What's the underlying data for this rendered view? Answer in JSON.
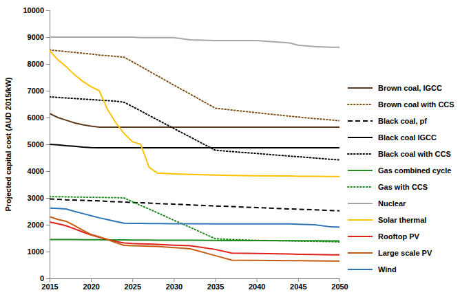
{
  "chart_data": {
    "type": "line",
    "y_label": "Projected capital cost (AUD 2015/kW)",
    "x": [
      2015,
      2016,
      2017,
      2018,
      2019,
      2020,
      2021,
      2022,
      2023,
      2024,
      2025,
      2026,
      2027,
      2028,
      2030,
      2032,
      2035,
      2037,
      2040,
      2044,
      2045,
      2047,
      2049,
      2050
    ],
    "xlim": [
      2015,
      2050
    ],
    "xticks": [
      2015,
      2020,
      2025,
      2030,
      2035,
      2040,
      2045,
      2050
    ],
    "ylim": [
      0,
      10000
    ],
    "yticks": [
      0,
      1000,
      2000,
      3000,
      4000,
      5000,
      6000,
      7000,
      8000,
      9000,
      10000
    ],
    "grid": false,
    "legend": "right",
    "series": [
      {
        "name": "Brown coal, IGCC",
        "color": "#5c3a1e",
        "line_style": "solid",
        "values": [
          6150,
          6000,
          5900,
          5800,
          5730,
          5680,
          5640,
          5640,
          5640,
          5640,
          5640,
          5640,
          5640,
          5640,
          5640,
          5640,
          5640,
          5640,
          5640,
          5640,
          5640,
          5640,
          5640,
          5640
        ]
      },
      {
        "name": "Brown coal with CCS",
        "color": "#7f5217",
        "line_style": "dotted",
        "values": [
          8520,
          8490,
          8460,
          8430,
          8400,
          8370,
          8330,
          8310,
          8280,
          8250,
          8080,
          7910,
          7730,
          7560,
          7210,
          6870,
          6350,
          6280,
          6180,
          6050,
          6020,
          5960,
          5910,
          5880
        ]
      },
      {
        "name": "Black coal, pf",
        "color": "#000000",
        "line_style": "dashed",
        "values": [
          2960,
          2950,
          2930,
          2920,
          2910,
          2900,
          2890,
          2870,
          2860,
          2850,
          2830,
          2820,
          2810,
          2790,
          2770,
          2740,
          2700,
          2680,
          2640,
          2590,
          2580,
          2560,
          2530,
          2520
        ]
      },
      {
        "name": "Black coal IGCC",
        "color": "#000000",
        "line_style": "solid",
        "values": [
          5000,
          4980,
          4950,
          4930,
          4900,
          4880,
          4870,
          4870,
          4870,
          4870,
          4870,
          4870,
          4870,
          4870,
          4870,
          4870,
          4870,
          4870,
          4870,
          4870,
          4870,
          4870,
          4870,
          4870
        ]
      },
      {
        "name": "Black coal with CCS",
        "color": "#000000",
        "line_style": "dotted",
        "values": [
          6770,
          6750,
          6730,
          6710,
          6690,
          6670,
          6650,
          6630,
          6610,
          6570,
          6410,
          6250,
          6080,
          5920,
          5590,
          5270,
          4780,
          4730,
          4660,
          4560,
          4540,
          4490,
          4440,
          4420
        ]
      },
      {
        "name": "Gas combined cycle",
        "color": "#1f8a1f",
        "line_style": "solid",
        "values": [
          1450,
          1450,
          1448,
          1446,
          1444,
          1442,
          1440,
          1438,
          1436,
          1434,
          1432,
          1430,
          1428,
          1426,
          1422,
          1420,
          1415,
          1412,
          1410,
          1405,
          1404,
          1402,
          1400,
          1400
        ]
      },
      {
        "name": "Gas with CCS",
        "color": "#1f8a1f",
        "line_style": "dotted",
        "values": [
          3050,
          3045,
          3040,
          3035,
          3030,
          3025,
          3020,
          3015,
          3010,
          3000,
          2860,
          2720,
          2590,
          2450,
          2170,
          1900,
          1480,
          1450,
          1420,
          1400,
          1390,
          1380,
          1370,
          1360
        ]
      },
      {
        "name": "Nuclear",
        "color": "#a6a6a6",
        "line_style": "solid",
        "values": [
          9000,
          9000,
          9000,
          9000,
          9000,
          9000,
          9000,
          9000,
          9000,
          9000,
          9000,
          8980,
          8980,
          8980,
          8980,
          8900,
          8870,
          8870,
          8870,
          8780,
          8700,
          8650,
          8620,
          8620
        ]
      },
      {
        "name": "Solar thermal",
        "color": "#ffc000",
        "line_style": "solid",
        "values": [
          8500,
          8150,
          7900,
          7600,
          7350,
          7150,
          7000,
          6300,
          5800,
          5400,
          5100,
          5000,
          4150,
          3930,
          3900,
          3880,
          3850,
          3840,
          3830,
          3820,
          3810,
          3810,
          3800,
          3800
        ]
      },
      {
        "name": "Rooftop PV",
        "color": "#e0201a",
        "line_style": "solid",
        "values": [
          2100,
          2040,
          1960,
          1850,
          1730,
          1620,
          1530,
          1450,
          1380,
          1320,
          1300,
          1290,
          1280,
          1270,
          1240,
          1220,
          1080,
          940,
          930,
          910,
          900,
          890,
          880,
          880
        ]
      },
      {
        "name": "Large scale PV",
        "color": "#c55a11",
        "line_style": "solid",
        "values": [
          2300,
          2200,
          2130,
          1970,
          1800,
          1640,
          1550,
          1450,
          1330,
          1230,
          1220,
          1210,
          1200,
          1190,
          1150,
          1100,
          850,
          680,
          670,
          660,
          660,
          655,
          650,
          650
        ]
      },
      {
        "name": "Wind",
        "color": "#2e75b6",
        "line_style": "solid",
        "values": [
          2620,
          2610,
          2590,
          2500,
          2420,
          2340,
          2260,
          2190,
          2120,
          2060,
          2050,
          2050,
          2045,
          2045,
          2040,
          2040,
          2035,
          2035,
          2035,
          2035,
          2020,
          2000,
          1920,
          1910
        ]
      }
    ]
  }
}
